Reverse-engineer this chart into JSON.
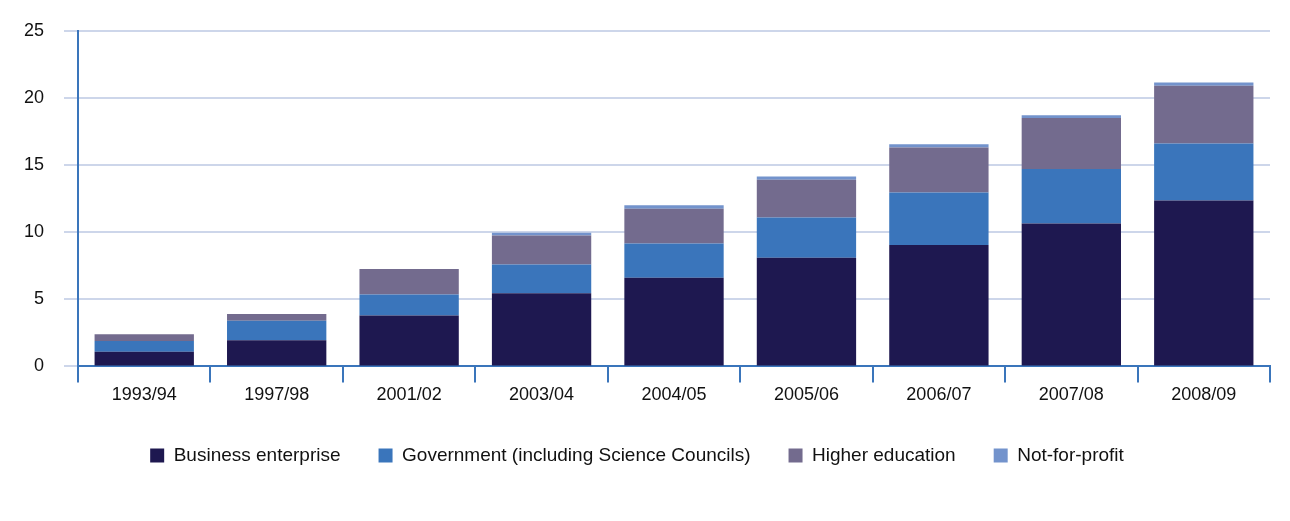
{
  "chart_data": {
    "type": "bar",
    "stacked": true,
    "categories": [
      "1993/94",
      "1997/98",
      "2001/02",
      "2003/04",
      "2004/05",
      "2005/06",
      "2006/07",
      "2007/08",
      "2008/09"
    ],
    "series": [
      {
        "name": "Business enterprise",
        "color": "#1e1850",
        "values": [
          1.1,
          1.95,
          3.8,
          5.45,
          6.6,
          8.1,
          9.05,
          10.65,
          12.35
        ]
      },
      {
        "name": "Government (including Science Councils)",
        "color": "#3a75bb",
        "values": [
          0.8,
          1.45,
          1.55,
          2.15,
          2.55,
          3.0,
          3.9,
          4.05,
          4.25
        ]
      },
      {
        "name": "Higher education",
        "color": "#736b8e",
        "values": [
          0.5,
          0.5,
          1.9,
          2.15,
          2.6,
          2.8,
          3.35,
          3.8,
          4.3
        ]
      },
      {
        "name": "Not-for-profit",
        "color": "#7393cc",
        "values": [
          0,
          0,
          0,
          0.2,
          0.25,
          0.25,
          0.25,
          0.2,
          0.25
        ]
      }
    ],
    "ylim": [
      0,
      25
    ],
    "yticks": [
      0,
      5,
      10,
      15,
      20,
      25
    ],
    "grid": "y",
    "legend": "bottom"
  }
}
